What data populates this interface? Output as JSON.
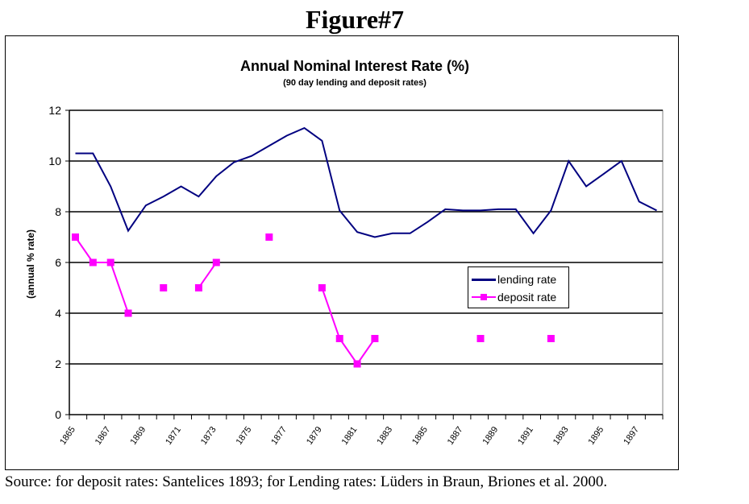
{
  "figure_label": "Figure#7",
  "source_note": "Source: for deposit rates: Santelices 1893; for Lending rates: Lüders in  Braun, Briones et al. 2000.",
  "colors": {
    "lending": "#000080",
    "deposit": "#ff00ff",
    "grid": "#000000"
  },
  "chart_data": {
    "type": "line",
    "title": "Annual Nominal Interest Rate (%)",
    "subtitle": "(90 day lending and deposit rates)",
    "xlabel": "",
    "ylabel": "(annual % rate)",
    "ylim": [
      0,
      12
    ],
    "yticks": [
      0,
      2,
      4,
      6,
      8,
      10,
      12
    ],
    "xlim": [
      1865,
      1898
    ],
    "xtick_labels": [
      "1865",
      "1867",
      "1869",
      "1871",
      "1873",
      "1875",
      "1877",
      "1879",
      "1881",
      "1883",
      "1885",
      "1887",
      "1889",
      "1891",
      "1893",
      "1895",
      "1897"
    ],
    "xtick_values": [
      1865,
      1867,
      1869,
      1871,
      1873,
      1875,
      1877,
      1879,
      1881,
      1883,
      1885,
      1887,
      1889,
      1891,
      1893,
      1895,
      1897
    ],
    "grid": "horizontal major",
    "legend_position": "center-right",
    "series": [
      {
        "name": "lending rate",
        "style": "line",
        "x": [
          1865,
          1866,
          1867,
          1868,
          1869,
          1870,
          1871,
          1872,
          1873,
          1874,
          1875,
          1876,
          1877,
          1878,
          1879,
          1880,
          1881,
          1882,
          1883,
          1884,
          1885,
          1886,
          1887,
          1888,
          1889,
          1890,
          1891,
          1892,
          1893,
          1894,
          1895,
          1896,
          1897,
          1898
        ],
        "values": [
          10.3,
          10.3,
          9.0,
          7.25,
          8.25,
          8.6,
          9.0,
          8.6,
          9.4,
          9.95,
          10.2,
          10.6,
          11.0,
          11.3,
          10.8,
          8.05,
          7.2,
          7.0,
          7.15,
          7.15,
          7.6,
          8.1,
          8.05,
          8.05,
          8.1,
          8.1,
          7.15,
          8.05,
          10.0,
          9.0,
          9.5,
          10.0,
          8.4,
          8.05
        ]
      },
      {
        "name": "deposit rate",
        "style": "line-markers",
        "x": [
          1865,
          1866,
          1867,
          1868,
          1869,
          1870,
          1871,
          1872,
          1873,
          1874,
          1875,
          1876,
          1877,
          1878,
          1879,
          1880,
          1881,
          1882,
          1883,
          1884,
          1885,
          1886,
          1887,
          1888,
          1889,
          1890,
          1891,
          1892,
          1893,
          1894,
          1895,
          1896,
          1897,
          1898
        ],
        "values": [
          7,
          6,
          6,
          4,
          null,
          5,
          null,
          5,
          6,
          null,
          null,
          7,
          null,
          null,
          5,
          3,
          2,
          3,
          null,
          null,
          null,
          null,
          null,
          3,
          null,
          null,
          null,
          3,
          null,
          null,
          null,
          null,
          null,
          null
        ]
      }
    ]
  }
}
